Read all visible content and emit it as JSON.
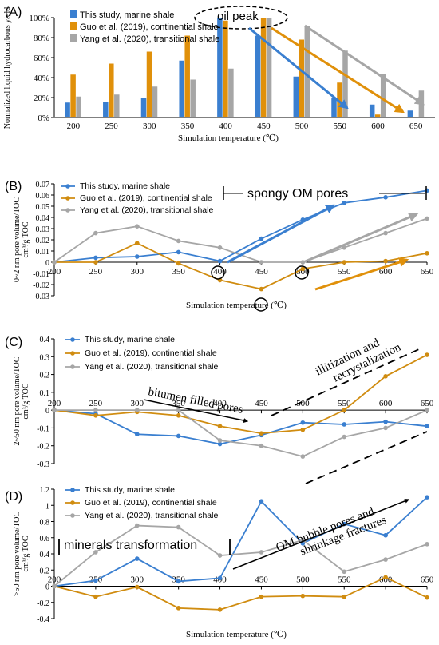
{
  "colors": {
    "blue": "#3a7fd0",
    "orange": "#d08c10",
    "gray": "#a6a6a6",
    "annot_blue": "#3a7fd0",
    "annot_orange": "#e0900a",
    "annot_gray": "#a6a6a6"
  },
  "chart_data": [
    {
      "id": "A",
      "type": "bar",
      "panel_label": "(A)",
      "categories": [
        "200",
        "250",
        "300",
        "350",
        "400",
        "450",
        "500",
        "550",
        "600",
        "650"
      ],
      "series": [
        {
          "name": "This study, marine shale",
          "color": "#3a7fd0",
          "values": [
            15,
            16,
            20,
            57,
            100,
            82,
            41,
            20,
            13,
            7
          ]
        },
        {
          "name": "Guo et al. (2019), continential shale",
          "color": "#e0900a",
          "values": [
            43,
            54,
            66,
            82,
            97,
            100,
            78,
            35,
            3,
            0
          ]
        },
        {
          "name": "Yang et al. (2020), transitional shale",
          "color": "#a6a6a6",
          "values": [
            21,
            23,
            31,
            38,
            49,
            100,
            92,
            67,
            44,
            27
          ]
        }
      ],
      "ylim": [
        0,
        100
      ],
      "yticks": [
        "0%",
        "20%",
        "40%",
        "60%",
        "80%",
        "100%"
      ],
      "ylabel": "Normalized liquid hydrocarbons yield",
      "xlabel": "Simulation temperature (℃)",
      "annotations": {
        "peak": "oil peak"
      }
    },
    {
      "id": "B",
      "type": "line",
      "panel_label": "(B)",
      "x": [
        200,
        250,
        300,
        350,
        400,
        450,
        500,
        550,
        600,
        650
      ],
      "series": [
        {
          "name": "This study, marine shale",
          "color": "#3a7fd0",
          "values": [
            0,
            0.004,
            0.005,
            0.009,
            0.001,
            0.021,
            0.038,
            0.053,
            0.058,
            0.064
          ]
        },
        {
          "name": "Guo et al. (2019), continential shale",
          "color": "#d08c10",
          "values": [
            0,
            0,
            0.017,
            -0.001,
            -0.016,
            -0.024,
            -0.006,
            0,
            0.001,
            0.008
          ]
        },
        {
          "name": "Yang et al. (2020), transitional shale",
          "color": "#a6a6a6",
          "values": [
            0,
            0.026,
            0.032,
            0.019,
            0.013,
            0,
            0,
            0.013,
            0.026,
            0.039
          ]
        }
      ],
      "ylim": [
        -0.03,
        0.07
      ],
      "yticks": [
        "-0.03",
        "-0.02",
        "-0.01",
        "0",
        "0.01",
        "0.02",
        "0.03",
        "0.04",
        "0.05",
        "0.06",
        "0.07"
      ],
      "ylabel_line1": "0~2 nm pore volume/TOC",
      "ylabel_line2": "cm³/g TOC",
      "xlabel": "Simulation temperature (℃)",
      "annotations": {
        "spongy": "spongy OM pores"
      }
    },
    {
      "id": "C",
      "type": "line",
      "panel_label": "(C)",
      "x": [
        200,
        250,
        300,
        350,
        400,
        450,
        500,
        550,
        600,
        650
      ],
      "series": [
        {
          "name": "This study, marine shale",
          "color": "#3a7fd0",
          "values": [
            0,
            -0.02,
            -0.135,
            -0.145,
            -0.19,
            -0.14,
            -0.07,
            -0.08,
            -0.065,
            -0.09
          ]
        },
        {
          "name": "Guo et al. (2019), continential shale",
          "color": "#d08c10",
          "values": [
            0,
            -0.03,
            -0.01,
            -0.03,
            -0.09,
            -0.13,
            -0.11,
            0,
            0.19,
            0.31
          ]
        },
        {
          "name": "Yang et al. (2020), transitional shale",
          "color": "#a6a6a6",
          "values": [
            0,
            0,
            0,
            0,
            -0.17,
            -0.2,
            -0.26,
            -0.15,
            -0.1,
            0
          ]
        }
      ],
      "ylim": [
        -0.3,
        0.4
      ],
      "yticks": [
        "-0.3",
        "-0.2",
        "-0.1",
        "0",
        "0.1",
        "0.2",
        "0.3",
        "0.4"
      ],
      "ylabel_line1": "2~50 nm pore volume/TOC",
      "ylabel_line2": "cm³/g TOC",
      "annotations": {
        "illit1": "illitization and",
        "illit2": "recrystalization",
        "bitumen": "bitumen filled pores"
      }
    },
    {
      "id": "D",
      "type": "line",
      "panel_label": "(D)",
      "x": [
        200,
        250,
        300,
        350,
        400,
        450,
        500,
        550,
        600,
        650
      ],
      "series": [
        {
          "name": "This study, marine shale",
          "color": "#3a7fd0",
          "values": [
            0,
            0.07,
            0.34,
            0.06,
            0.1,
            1.05,
            0.53,
            0.77,
            0.63,
            1.1
          ]
        },
        {
          "name": "Guo et al. (2019), continential shale",
          "color": "#d08c10",
          "values": [
            0,
            -0.13,
            -0.01,
            -0.27,
            -0.29,
            -0.13,
            -0.12,
            -0.13,
            0.11,
            -0.14
          ]
        },
        {
          "name": "Yang et al. (2020), transitional shale",
          "color": "#a6a6a6",
          "values": [
            0,
            0.42,
            0.75,
            0.73,
            0.38,
            0.42,
            0.57,
            0.18,
            0.33,
            0.52
          ]
        }
      ],
      "ylim": [
        -0.4,
        1.2
      ],
      "yticks": [
        "-0.4",
        "-0.2",
        "0",
        "0.2",
        "0.4",
        "0.6",
        "0.8",
        "1",
        "1.2"
      ],
      "ylabel_line1": ">50 nm pore volume/TOC",
      "ylabel_line2": "cm³/g TOC",
      "xlabel": "Simulation temperature (℃)",
      "annotations": {
        "minerals": "minerals transformation",
        "bubble1": "OM bubble pores and",
        "bubble2": "shrinkage fractures"
      }
    }
  ]
}
